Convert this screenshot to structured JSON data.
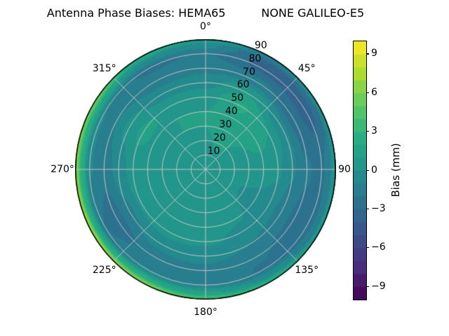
{
  "figure": {
    "title_display": "Antenna Phase Biases: HEMA65          NONE GALILEO-E5",
    "title_left": "Antenna Phase Biases: HEMA65",
    "title_right": "NONE GALILEO-E5"
  },
  "chart_data": {
    "type": "heatmap",
    "projection": "polar",
    "title": "Antenna Phase Biases: HEMA65          NONE GALILEO-E5",
    "station": "HEMA65",
    "signal": "NONE GALILEO-E5",
    "grid_on": true,
    "grid_color": "#c9c9c9",
    "angular_step_deg": 45,
    "radial_step_deg": 10,
    "angular_ticks": [
      {
        "deg": 0,
        "label": "0°"
      },
      {
        "deg": 45,
        "label": "45°"
      },
      {
        "deg": 90,
        "label": "90"
      },
      {
        "deg": 135,
        "label": "135°"
      },
      {
        "deg": 180,
        "label": "180°"
      },
      {
        "deg": 225,
        "label": "225°"
      },
      {
        "deg": 270,
        "label": "270°"
      },
      {
        "deg": 315,
        "label": "315°"
      }
    ],
    "radial_ticks": [
      10,
      20,
      30,
      40,
      50,
      60,
      70,
      80,
      90
    ],
    "radial_label_azimuth_deg": 24,
    "colorbar": {
      "label": "Bias (mm)",
      "ticks": [
        9,
        6,
        3,
        0,
        -3,
        -6,
        -9
      ],
      "vmin": -10,
      "vmax": 10,
      "level_step": 1,
      "colormap": "viridis",
      "position": "right"
    },
    "colormap_stops": [
      "#440154",
      "#472d7b",
      "#3b518b",
      "#2c718e",
      "#21908d",
      "#27ad81",
      "#5cc863",
      "#aadc32",
      "#fde725"
    ],
    "azimuth_deg": [
      0,
      30,
      60,
      90,
      120,
      150,
      180,
      210,
      240,
      270,
      300,
      330
    ],
    "zenith_deg": [
      0,
      10,
      20,
      30,
      40,
      50,
      60,
      70,
      80,
      85,
      90
    ],
    "bias_mm_grid": [
      [
        0.8,
        0.8,
        0.8,
        0.8,
        0.8,
        0.8,
        0.8,
        0.8,
        0.8,
        0.8,
        0.8,
        0.8
      ],
      [
        0.9,
        0.9,
        0.9,
        0.8,
        0.6,
        0.6,
        0.7,
        0.8,
        0.8,
        0.8,
        0.8,
        0.9
      ],
      [
        0.9,
        1.1,
        0.9,
        0.8,
        0.3,
        0.4,
        0.7,
        0.8,
        0.8,
        0.9,
        0.9,
        0.9
      ],
      [
        1.0,
        1.4,
        1.0,
        0.8,
        -0.1,
        0.2,
        0.6,
        0.8,
        0.8,
        0.9,
        0.9,
        1.0
      ],
      [
        1.0,
        1.9,
        1.2,
        0.7,
        -0.3,
        0.1,
        0.5,
        0.7,
        0.7,
        0.8,
        0.9,
        1.0
      ],
      [
        0.6,
        2.1,
        1.0,
        0.2,
        -0.6,
        -0.2,
        0.2,
        0.4,
        0.2,
        0.5,
        1.2,
        0.8
      ],
      [
        -0.4,
        1.0,
        -0.7,
        -0.9,
        -1.4,
        -1.0,
        -0.6,
        -0.6,
        -1.2,
        -0.6,
        0.3,
        -0.5
      ],
      [
        -1.3,
        -1.6,
        -2.6,
        -1.9,
        -2.3,
        -1.9,
        -1.3,
        -1.6,
        -2.6,
        -1.6,
        -1.0,
        -1.6
      ],
      [
        -1.9,
        -3.3,
        -3.4,
        -2.3,
        -2.7,
        -2.1,
        -1.1,
        -1.0,
        -2.0,
        -0.9,
        -1.0,
        -2.2
      ],
      [
        -0.8,
        -3.1,
        -2.9,
        -1.2,
        -1.6,
        -0.2,
        1.2,
        2.2,
        2.0,
        2.4,
        2.0,
        -0.2
      ],
      [
        1.2,
        -0.8,
        0.4,
        0.9,
        1.4,
        3.2,
        4.2,
        6.6,
        7.6,
        7.0,
        5.8,
        2.6
      ]
    ]
  }
}
